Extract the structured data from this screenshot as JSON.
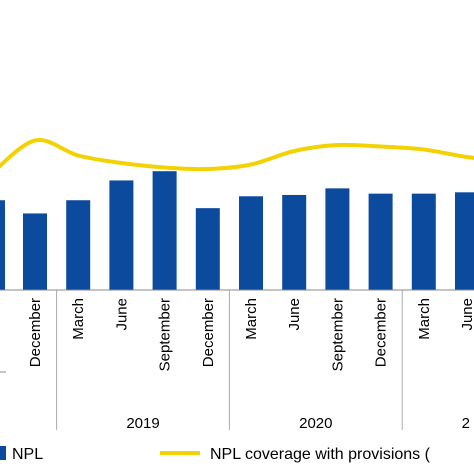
{
  "chart_data": {
    "type": "bar",
    "categories": [
      "December",
      "March",
      "June",
      "September",
      "December",
      "March",
      "June",
      "September",
      "December",
      "March",
      "June"
    ],
    "years": [
      {
        "label": "2019",
        "start": 1,
        "end": 4
      },
      {
        "label": "2020",
        "start": 5,
        "end": 8
      },
      {
        "label": "2",
        "start": 9,
        "end": 10
      }
    ],
    "series": [
      {
        "name": "NPL",
        "type": "bar",
        "values": [
          5.8,
          6.8,
          8.3,
          9.0,
          6.2,
          7.1,
          7.2,
          7.7,
          7.3,
          7.3,
          7.4
        ],
        "partial_left_value": 6.8
      },
      {
        "name": "NPL coverage with provisions (",
        "type": "line",
        "values": [
          11.5,
          10.5,
          10.0,
          9.7,
          9.6,
          9.9,
          10.8,
          11.2,
          11.1,
          10.9,
          10.4
        ],
        "extra_left_value": 9.2,
        "extra_right_value": 10.1
      }
    ],
    "colors": {
      "bar": "#0b4a9c",
      "line": "#f2d200"
    },
    "legend": {
      "position": "bottom"
    }
  }
}
